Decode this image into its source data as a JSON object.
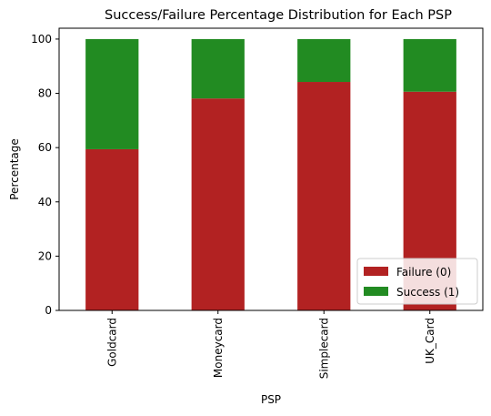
{
  "chart_data": {
    "type": "bar",
    "stacked": true,
    "title": "Success/Failure Percentage Distribution for Each PSP",
    "xlabel": "PSP",
    "ylabel": "Percentage",
    "categories": [
      "Goldcard",
      "Moneycard",
      "Simplecard",
      "UK_Card"
    ],
    "series": [
      {
        "name": "Failure (0)",
        "color": "#b22222",
        "values": [
          59.4,
          78.1,
          84.2,
          80.6
        ]
      },
      {
        "name": "Success (1)",
        "color": "#228b22",
        "values": [
          40.6,
          21.9,
          15.8,
          19.4
        ]
      }
    ],
    "ylim": [
      0,
      104
    ],
    "yticks": [
      0,
      20,
      40,
      60,
      80,
      100
    ],
    "grid": false,
    "legend_position": "lower-right"
  }
}
